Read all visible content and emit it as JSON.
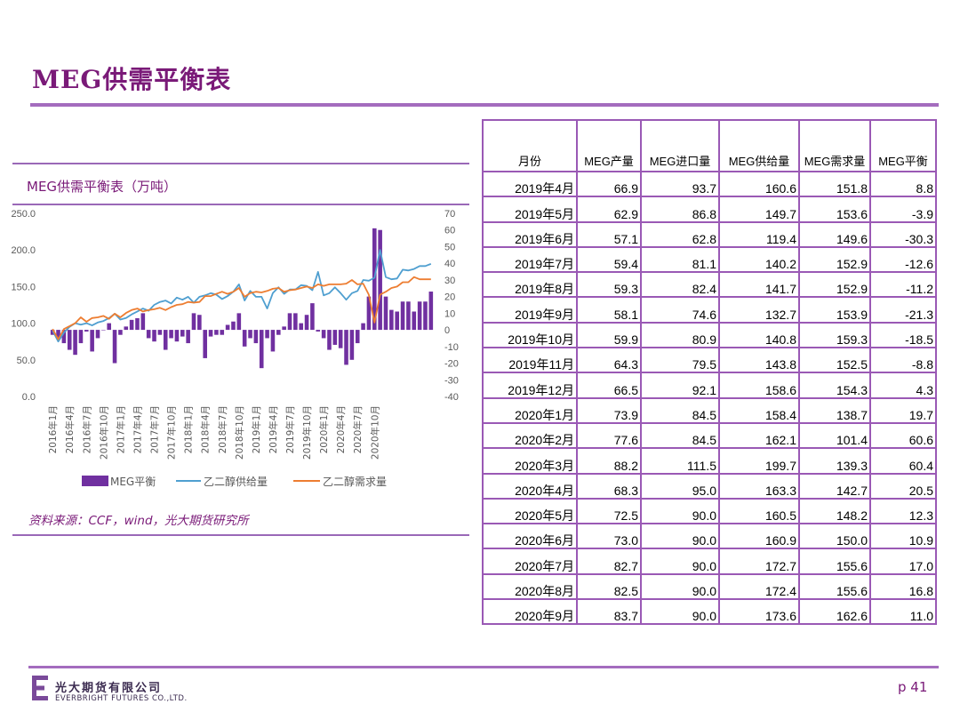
{
  "page": {
    "title": "MEG供需平衡表",
    "page_number": "p 41",
    "company_cn": "光大期货有限公司",
    "company_en": "EVERBRIGHT FUTURES CO.,LTD."
  },
  "chart_data": {
    "type": "bar+line",
    "title": "MEG供需平衡表（万吨）",
    "source": "资料来源：CCF，wind，光大期货研究所",
    "left_axis": {
      "ticks": [
        "250.0",
        "200.0",
        "150.0",
        "100.0",
        "50.0",
        "0.0"
      ],
      "ylim": [
        0,
        250
      ]
    },
    "right_axis": {
      "ticks": [
        "70",
        "60",
        "50",
        "40",
        "30",
        "20",
        "10",
        "0",
        "-10",
        "-20",
        "-30",
        "-40"
      ],
      "ylim": [
        -40,
        70
      ]
    },
    "x_tick_labels": [
      "2016年1月",
      "2016年4月",
      "2016年7月",
      "2016年10月",
      "2017年1月",
      "2017年4月",
      "2017年7月",
      "2017年10月",
      "2018年1月",
      "2018年4月",
      "2018年7月",
      "2018年10月",
      "2019年1月",
      "2019年4月",
      "2019年7月",
      "2019年10月",
      "2020年1月",
      "2020年4月",
      "2020年7月",
      "2020年10月"
    ],
    "legend": [
      "MEG平衡",
      "乙二醇供给量",
      "乙二醇需求量"
    ],
    "colors": {
      "balance": "#7030a0",
      "supply": "#4f9fd0",
      "demand": "#ed7d31"
    },
    "series": [
      {
        "name": "MEG平衡",
        "axis": "right",
        "type": "bar",
        "values": [
          -3,
          -5,
          -8,
          -12,
          -15,
          -8,
          -1,
          -13,
          -5,
          0,
          4,
          -20,
          -3,
          2,
          6,
          7,
          10,
          -5,
          -7,
          -3,
          -12,
          -5,
          -7,
          -4,
          -8,
          10,
          9,
          -17,
          -4,
          -3,
          -3,
          3,
          5,
          10,
          -10,
          -5,
          -8,
          -23,
          -5,
          -13,
          -3,
          2,
          10,
          10,
          4,
          9,
          16,
          -1,
          -5,
          -12,
          -9,
          -11,
          -21,
          -18,
          -8,
          4,
          20,
          61,
          60,
          20,
          12,
          11,
          17,
          17,
          11,
          17,
          17,
          23
        ]
      },
      {
        "name": "乙二醇供给量",
        "axis": "left",
        "type": "line",
        "values": [
          90,
          75,
          87,
          95,
          100,
          98,
          100,
          97,
          101,
          103,
          107,
          113,
          105,
          107,
          112,
          116,
          120,
          117,
          125,
          129,
          131,
          127,
          135,
          132,
          136,
          128,
          136,
          138,
          141,
          139,
          133,
          137,
          143,
          153,
          131,
          144,
          136,
          136,
          120,
          141,
          149,
          140,
          146,
          146,
          152,
          151,
          145,
          170,
          138,
          141,
          149,
          141,
          132,
          141,
          144,
          159,
          158,
          162,
          200,
          163,
          160,
          161,
          173,
          172,
          174,
          178,
          178,
          181
        ]
      },
      {
        "name": "乙二醇需求量",
        "axis": "left",
        "type": "line",
        "values": [
          92,
          78,
          92,
          96,
          100,
          108,
          102,
          107,
          108,
          110,
          106,
          113,
          108,
          114,
          118,
          120,
          116,
          118,
          119,
          121,
          118,
          122,
          125,
          126,
          129,
          128,
          129,
          137,
          137,
          140,
          143,
          140,
          143,
          148,
          136,
          141,
          143,
          142,
          144,
          147,
          148,
          143,
          145,
          146,
          148,
          150,
          148,
          153,
          151,
          153,
          153,
          153,
          154,
          159,
          153,
          154,
          139,
          101,
          139,
          143,
          148,
          150,
          156,
          156,
          163,
          160,
          160,
          160
        ]
      }
    ]
  },
  "table": {
    "headers": [
      "月份",
      "MEG产量",
      "MEG进口量",
      "MEG供给量",
      "MEG需求量",
      "MEG平衡"
    ],
    "rows": [
      [
        "2019年4月",
        "66.9",
        "93.7",
        "160.6",
        "151.8",
        "8.8"
      ],
      [
        "2019年5月",
        "62.9",
        "86.8",
        "149.7",
        "153.6",
        "-3.9"
      ],
      [
        "2019年6月",
        "57.1",
        "62.8",
        "119.4",
        "149.6",
        "-30.3"
      ],
      [
        "2019年7月",
        "59.4",
        "81.1",
        "140.2",
        "152.9",
        "-12.6"
      ],
      [
        "2019年8月",
        "59.3",
        "82.4",
        "141.7",
        "152.9",
        "-11.2"
      ],
      [
        "2019年9月",
        "58.1",
        "74.6",
        "132.7",
        "153.9",
        "-21.3"
      ],
      [
        "2019年10月",
        "59.9",
        "80.9",
        "140.8",
        "159.3",
        "-18.5"
      ],
      [
        "2019年11月",
        "64.3",
        "79.5",
        "143.8",
        "152.5",
        "-8.8"
      ],
      [
        "2019年12月",
        "66.5",
        "92.1",
        "158.6",
        "154.3",
        "4.3"
      ],
      [
        "2020年1月",
        "73.9",
        "84.5",
        "158.4",
        "138.7",
        "19.7"
      ],
      [
        "2020年2月",
        "77.6",
        "84.5",
        "162.1",
        "101.4",
        "60.6"
      ],
      [
        "2020年3月",
        "88.2",
        "111.5",
        "199.7",
        "139.3",
        "60.4"
      ],
      [
        "2020年4月",
        "68.3",
        "95.0",
        "163.3",
        "142.7",
        "20.5"
      ],
      [
        "2020年5月",
        "72.5",
        "90.0",
        "160.5",
        "148.2",
        "12.3"
      ],
      [
        "2020年6月",
        "73.0",
        "90.0",
        "160.9",
        "150.0",
        "10.9"
      ],
      [
        "2020年7月",
        "82.7",
        "90.0",
        "172.7",
        "155.6",
        "17.0"
      ],
      [
        "2020年8月",
        "82.5",
        "90.0",
        "172.4",
        "155.6",
        "16.8"
      ],
      [
        "2020年9月",
        "83.7",
        "90.0",
        "173.6",
        "162.6",
        "11.0"
      ]
    ]
  }
}
